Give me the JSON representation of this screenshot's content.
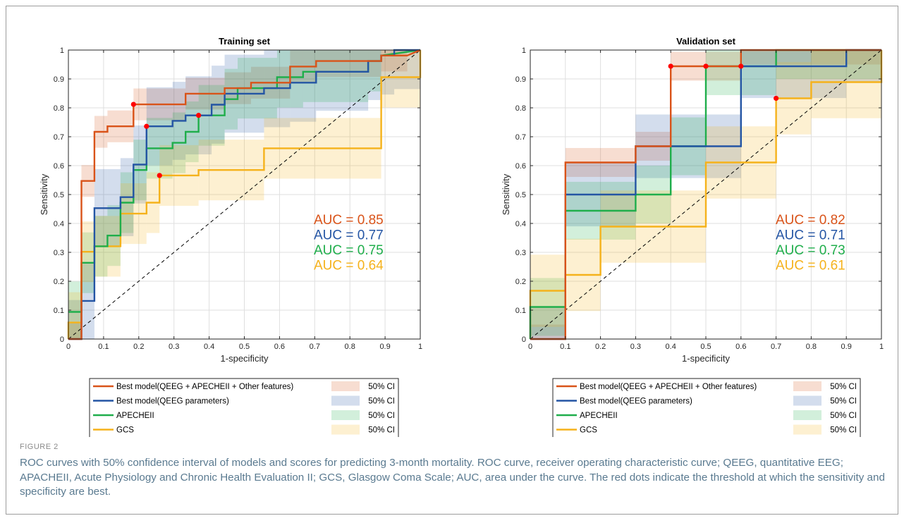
{
  "figure": {
    "label": "FIGURE 2",
    "caption": "ROC curves with 50% confidence interval of models and scores for predicting 3-month mortality. ROC curve, receiver operating characteristic curve; QEEG, quantitative EEG; APACHEII, Acute Physiology and Chronic Health Evaluation II; GCS, Glasgow Coma Scale; AUC, area under the curve. The red dots indicate the threshold at which the sensitivity and specificity are best."
  },
  "chart_data": [
    {
      "type": "line",
      "title": "Training set",
      "xlabel": "1-specificity",
      "ylabel": "Sensitivity",
      "xlim": [
        0,
        1
      ],
      "ylim": [
        0,
        1
      ],
      "ticks": [
        0,
        0.1,
        0.2,
        0.3,
        0.4,
        0.5,
        0.6,
        0.7,
        0.8,
        0.9,
        1
      ],
      "tick_labels": [
        "0",
        "0.1",
        "0.2",
        "0.3",
        "0.4",
        "0.5",
        "0.6",
        "0.7",
        "0.8",
        "0.9",
        "1"
      ],
      "grid": true,
      "diagonal_reference": true,
      "ci_label": "50% CI",
      "series": [
        {
          "name": "Best model(QEEG + APECHEII + Other features)",
          "color": "#d95319",
          "auc_label": "AUC = 0.85",
          "optimal_point": [
            0.185,
            0.812
          ],
          "x": [
            0,
            0.037,
            0.037,
            0.074,
            0.074,
            0.111,
            0.111,
            0.185,
            0.185,
            0.333,
            0.333,
            0.444,
            0.444,
            0.519,
            0.519,
            0.63,
            0.63,
            0.704,
            0.704,
            0.889,
            0.889,
            0.963,
            0.963,
            1
          ],
          "y": [
            0,
            0,
            0.547,
            0.547,
            0.717,
            0.717,
            0.736,
            0.736,
            0.812,
            0.812,
            0.849,
            0.849,
            0.868,
            0.868,
            0.887,
            0.887,
            0.943,
            0.943,
            0.962,
            0.962,
            0.981,
            0.981,
            0.981,
            1
          ],
          "ci": [
            0.11,
            0.2
          ]
        },
        {
          "name": "Best model(QEEG parameters)",
          "color": "#2455a4",
          "auc_label": "AUC = 0.77",
          "optimal_point": [
            0.222,
            0.736
          ],
          "x": [
            0,
            0.037,
            0.037,
            0.074,
            0.074,
            0.111,
            0.111,
            0.148,
            0.148,
            0.185,
            0.185,
            0.222,
            0.222,
            0.296,
            0.296,
            0.333,
            0.333,
            0.407,
            0.407,
            0.444,
            0.444,
            0.556,
            0.556,
            0.63,
            0.63,
            0.704,
            0.704,
            0.852,
            0.852,
            0.889,
            0.889,
            0.926,
            0.926,
            1
          ],
          "y": [
            0,
            0,
            0.132,
            0.132,
            0.453,
            0.453,
            0.453,
            0.453,
            0.491,
            0.491,
            0.604,
            0.604,
            0.736,
            0.736,
            0.755,
            0.755,
            0.774,
            0.774,
            0.811,
            0.811,
            0.849,
            0.849,
            0.868,
            0.868,
            0.887,
            0.887,
            0.925,
            0.925,
            0.962,
            0.962,
            0.981,
            0.981,
            1,
            1
          ],
          "ci": [
            0.27,
            0.2
          ]
        },
        {
          "name": "APECHEII",
          "color": "#1fae4b",
          "auc_label": "AUC = 0.75",
          "optimal_point": [
            0.37,
            0.774
          ],
          "x": [
            0,
            0.037,
            0.037,
            0.074,
            0.074,
            0.111,
            0.111,
            0.148,
            0.148,
            0.185,
            0.185,
            0.222,
            0.222,
            0.296,
            0.296,
            0.333,
            0.333,
            0.37,
            0.37,
            0.444,
            0.444,
            0.481,
            0.481,
            0.593,
            0.593,
            0.667,
            0.667,
            0.852,
            0.852,
            0.889,
            0.889,
            1
          ],
          "y": [
            0.094,
            0.094,
            0.264,
            0.264,
            0.321,
            0.321,
            0.358,
            0.358,
            0.472,
            0.472,
            0.585,
            0.585,
            0.66,
            0.66,
            0.679,
            0.679,
            0.717,
            0.717,
            0.774,
            0.774,
            0.83,
            0.83,
            0.868,
            0.868,
            0.906,
            0.906,
            0.925,
            0.925,
            0.962,
            0.962,
            0.981,
            1
          ],
          "ci": [
            0.21,
            0.2
          ]
        },
        {
          "name": "GCS",
          "color": "#f5b21b",
          "auc_label": "AUC = 0.64",
          "optimal_point": [
            0.259,
            0.566
          ],
          "x": [
            0,
            0,
            0.037,
            0.037,
            0.074,
            0.074,
            0.148,
            0.148,
            0.222,
            0.222,
            0.259,
            0.259,
            0.37,
            0.37,
            0.556,
            0.556,
            0.889,
            0.889,
            1,
            1
          ],
          "y": [
            0,
            0.057,
            0.057,
            0.302,
            0.302,
            0.321,
            0.321,
            0.434,
            0.434,
            0.472,
            0.472,
            0.566,
            0.566,
            0.585,
            0.585,
            0.66,
            0.66,
            0.906,
            0.906,
            1
          ],
          "ci": [
            0.21,
            0.2
          ]
        }
      ]
    },
    {
      "type": "line",
      "title": "Validation set",
      "xlabel": "1-specificity",
      "ylabel": "Sensitivity",
      "xlim": [
        0,
        1
      ],
      "ylim": [
        0,
        1
      ],
      "ticks": [
        0,
        0.1,
        0.2,
        0.3,
        0.4,
        0.5,
        0.6,
        0.7,
        0.8,
        0.9,
        1
      ],
      "tick_labels": [
        "0",
        "0.1",
        "0.2",
        "0.3",
        "0.4",
        "0.5",
        "0.6",
        "0.7",
        "0.8",
        "0.9",
        "1"
      ],
      "grid": true,
      "diagonal_reference": true,
      "ci_label": "50% CI",
      "series": [
        {
          "name": "Best model(QEEG + APECHEII + Other features)",
          "color": "#d95319",
          "auc_label": "AUC = 0.82",
          "optimal_points": [
            [
              0.4,
              0.944
            ],
            [
              0.5,
              0.944
            ]
          ],
          "x": [
            0,
            0.1,
            0.1,
            0.3,
            0.3,
            0.4,
            0.4,
            0.5,
            0.5,
            0.6,
            0.6,
            0.7,
            0.7,
            1
          ],
          "y": [
            0,
            0,
            0.611,
            0.611,
            0.667,
            0.667,
            0.944,
            0.944,
            0.944,
            0.944,
            1,
            1,
            1,
            1
          ],
          "ci": [
            0.1,
            0.2
          ]
        },
        {
          "name": "Best model(QEEG parameters)",
          "color": "#2455a4",
          "auc_label": "AUC = 0.71",
          "optimal_point": [
            0.6,
            0.944
          ],
          "x": [
            0,
            0.1,
            0.1,
            0.3,
            0.3,
            0.6,
            0.6,
            0.9,
            0.9,
            1
          ],
          "y": [
            0,
            0,
            0.5,
            0.5,
            0.667,
            0.667,
            0.944,
            0.944,
            1,
            1
          ],
          "ci": [
            0.22,
            0.2
          ]
        },
        {
          "name": "APECHEII",
          "color": "#1fae4b",
          "auc_label": "AUC = 0.73",
          "x": [
            0,
            0,
            0.1,
            0.1,
            0.3,
            0.3,
            0.4,
            0.4,
            0.5,
            0.5,
            0.6,
            0.6,
            0.7,
            0.7,
            1
          ],
          "y": [
            0,
            0.111,
            0.111,
            0.444,
            0.444,
            0.5,
            0.5,
            0.667,
            0.667,
            0.944,
            0.944,
            0.944,
            0.944,
            1,
            1
          ],
          "ci": [
            0.2,
            0.2
          ]
        },
        {
          "name": "GCS",
          "color": "#f5b21b",
          "auc_label": "AUC = 0.61",
          "optimal_point": [
            0.7,
            0.833
          ],
          "x": [
            0,
            0,
            0.1,
            0.1,
            0.2,
            0.2,
            0.5,
            0.5,
            0.7,
            0.7,
            0.8,
            0.8,
            1,
            1
          ],
          "y": [
            0,
            0.167,
            0.167,
            0.222,
            0.222,
            0.389,
            0.389,
            0.611,
            0.611,
            0.833,
            0.833,
            0.889,
            0.889,
            1
          ],
          "ci": [
            0.25,
            0.2
          ]
        }
      ]
    }
  ]
}
